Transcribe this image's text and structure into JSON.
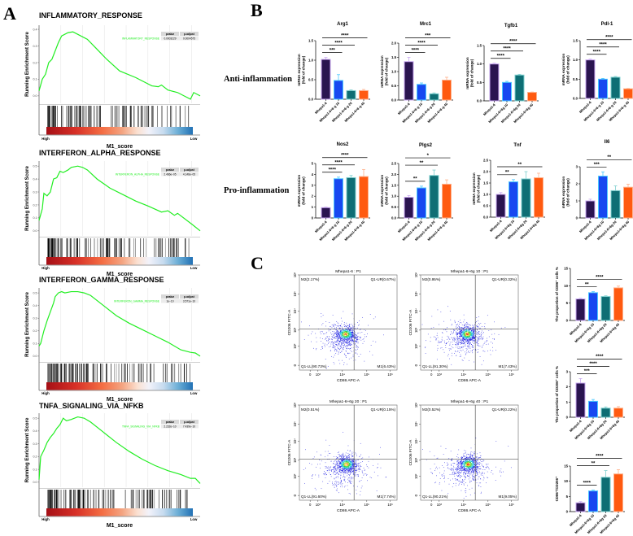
{
  "panel_labels": {
    "a": "A",
    "b": "B",
    "c": "C"
  },
  "row_labels": {
    "anti": "Anti-inflammation",
    "pro": "Pro-inflammation"
  },
  "colors": {
    "curve": "#22ee22",
    "bar_fills": [
      "#2a1450",
      "#1848f0",
      "#0e6e74",
      "#ff5a10"
    ],
    "bar_strokes": [
      "#c9a8f2",
      "#4cc8ff",
      "#7fd0d0",
      "#ffb08a"
    ],
    "flow_line": "#555555"
  },
  "chart_data": [
    {
      "panel": "A",
      "type": "line",
      "title": "INFLAMMATORY_RESPONSE",
      "gene_set_label": "INFLAMMATORY_RESPONSE",
      "table_headers": [
        "pvalue",
        "p.adjust"
      ],
      "pvalue": "0.0003229",
      "p_adjust": "0.0004575",
      "ylabel": "Running Enrichment Score",
      "xlabel": "M1_score",
      "x_ends": [
        "High",
        "Low"
      ],
      "ylim": [
        -0.03,
        0.41
      ],
      "yticks": [
        "0.0",
        "0.1",
        "0.2",
        "0.3",
        "0.4"
      ],
      "x": [
        0,
        0.02,
        0.04,
        0.06,
        0.08,
        0.1,
        0.12,
        0.14,
        0.18,
        0.21,
        0.24,
        0.3,
        0.36,
        0.42,
        0.5,
        0.6,
        0.7,
        0.74,
        0.76,
        0.8,
        0.86,
        0.9,
        0.94,
        0.96,
        1
      ],
      "y": [
        0.03,
        0.1,
        0.13,
        0.2,
        0.22,
        0.27,
        0.32,
        0.36,
        0.38,
        0.385,
        0.37,
        0.34,
        0.28,
        0.22,
        0.15,
        0.11,
        0.06,
        0.055,
        0.065,
        0.035,
        0.02,
        0.0,
        -0.02,
        0.02,
        0.0
      ]
    },
    {
      "panel": "A",
      "type": "line",
      "title": "INTERFERON_ALPHA_RESPONSE",
      "gene_set_label": "INTERFERON_ALPHA_RESPONSE",
      "table_headers": [
        "pvalue",
        "p.adjust"
      ],
      "pvalue": "2.466e−05",
      "p_adjust": "4.146e−05",
      "ylabel": "Running Enrichment Score",
      "xlabel": "M1_score",
      "x_ends": [
        "High",
        "Low"
      ],
      "ylim": [
        -0.02,
        0.52
      ],
      "yticks": [
        "0.0",
        "0.1",
        "0.2",
        "0.3",
        "0.4",
        "0.5"
      ],
      "x": [
        0,
        0.02,
        0.03,
        0.05,
        0.07,
        0.09,
        0.11,
        0.13,
        0.15,
        0.18,
        0.2,
        0.24,
        0.27,
        0.3,
        0.36,
        0.44,
        0.52,
        0.6,
        0.68,
        0.76,
        0.8,
        0.84,
        0.86,
        0.95,
        1
      ],
      "y": [
        0.08,
        0.17,
        0.29,
        0.27,
        0.3,
        0.4,
        0.41,
        0.46,
        0.45,
        0.47,
        0.49,
        0.5,
        0.49,
        0.47,
        0.4,
        0.33,
        0.28,
        0.23,
        0.19,
        0.145,
        0.155,
        0.12,
        0.135,
        0.05,
        0.0
      ]
    },
    {
      "panel": "A",
      "type": "line",
      "title": "INTERFERON_GAMMA_RESPONSE",
      "gene_set_label": "INTERFERON_GAMMA_RESPONSE",
      "table_headers": [
        "pvalue",
        "p.adjust"
      ],
      "pvalue": "1e−10",
      "p_adjust": "3.571e−10",
      "ylabel": "Running Enrichment Score",
      "xlabel": "M1_score",
      "x_ends": [
        "High",
        "Low"
      ],
      "ylim": [
        -0.02,
        0.52
      ],
      "yticks": [
        "0.0",
        "0.1",
        "0.2",
        "0.3",
        "0.4",
        "0.5"
      ],
      "x": [
        0,
        0.01,
        0.03,
        0.05,
        0.07,
        0.09,
        0.1,
        0.12,
        0.14,
        0.16,
        0.2,
        0.24,
        0.28,
        0.32,
        0.4,
        0.48,
        0.56,
        0.64,
        0.72,
        0.8,
        0.88,
        0.94,
        0.97,
        1
      ],
      "y": [
        0.08,
        0.1,
        0.2,
        0.28,
        0.35,
        0.42,
        0.47,
        0.5,
        0.51,
        0.5,
        0.51,
        0.51,
        0.5,
        0.48,
        0.4,
        0.32,
        0.26,
        0.21,
        0.16,
        0.11,
        0.05,
        0.03,
        0.025,
        0.0
      ]
    },
    {
      "panel": "A",
      "type": "line",
      "title": "TNFA_SIGNALING_VIA_NFKB",
      "gene_set_label": "TNFA_SIGNALING_VIA_NFKB",
      "table_headers": [
        "pvalue",
        "p.adjust"
      ],
      "pvalue": "2.232e−10",
      "p_adjust": "7.439e−10",
      "ylabel": "Running Enrichment Score",
      "xlabel": "M1_score",
      "x_ends": [
        "High",
        "Low"
      ],
      "ylim": [
        -0.02,
        0.52
      ],
      "yticks": [
        "0.0",
        "0.1",
        "0.2",
        "0.3",
        "0.4",
        "0.5"
      ],
      "x": [
        0,
        0.01,
        0.03,
        0.05,
        0.07,
        0.09,
        0.11,
        0.13,
        0.15,
        0.17,
        0.2,
        0.24,
        0.28,
        0.32,
        0.4,
        0.48,
        0.56,
        0.64,
        0.72,
        0.8,
        0.88,
        0.94,
        0.97,
        1
      ],
      "y": [
        0.02,
        0.2,
        0.25,
        0.31,
        0.35,
        0.38,
        0.42,
        0.45,
        0.5,
        0.48,
        0.49,
        0.51,
        0.5,
        0.47,
        0.39,
        0.31,
        0.24,
        0.18,
        0.13,
        0.09,
        0.06,
        0.03,
        0.03,
        -0.01
      ]
    },
    {
      "panel": "B",
      "type": "bar",
      "title": "Arg1",
      "ylabel": [
        "mRNA expression",
        "(fold of change)"
      ],
      "categories": [
        "Mhepa1-6",
        "Mhepa1-6+6-g 10",
        "Mhepa1-6+6-g 20",
        "Mhepa1-6+6-g 40"
      ],
      "values": [
        1.02,
        0.48,
        0.22,
        0.22
      ],
      "errors": [
        0.05,
        0.15,
        0.02,
        0.03
      ],
      "ylim": [
        0,
        1.5
      ],
      "yticks": [
        "0.0",
        "0.5",
        "1.0",
        "1.5"
      ],
      "significance": [
        {
          "from": 0,
          "to": 1,
          "label": "***"
        },
        {
          "from": 0,
          "to": 2,
          "label": "****"
        },
        {
          "from": 0,
          "to": 3,
          "label": "****"
        }
      ]
    },
    {
      "panel": "B",
      "type": "bar",
      "title": "Mrc1",
      "ylabel": [
        "mRNA expression",
        "(fold of change)"
      ],
      "categories": [
        "Mhepa1-6",
        "Mhepa1-6+6-g 10",
        "Mhepa1-6+6-g 20",
        "Mhepa1-6+6-g 40"
      ],
      "values": [
        1.35,
        0.55,
        0.22,
        0.7
      ],
      "errors": [
        0.15,
        0.05,
        0.03,
        0.1
      ],
      "ylim": [
        0,
        2.0
      ],
      "yticks": [
        "0.0",
        "0.5",
        "1.0",
        "1.5",
        "2.0"
      ],
      "significance": [
        {
          "from": 0,
          "to": 1,
          "label": "****"
        },
        {
          "from": 0,
          "to": 2,
          "label": "****"
        },
        {
          "from": 0,
          "to": 3,
          "label": "***"
        }
      ]
    },
    {
      "panel": "B",
      "type": "bar",
      "title": "Tgfb1",
      "ylabel": [
        "mRNA expression",
        "(fold of change)"
      ],
      "categories": [
        "Mhepa1-6",
        "Mhepa1-6+6g 10",
        "Mhepa1-6+6g 20",
        "Mhepa1-6+6g 40"
      ],
      "values": [
        1.0,
        0.5,
        0.7,
        0.23
      ],
      "errors": [
        0.02,
        0.03,
        0.02,
        0.01
      ],
      "ylim": [
        0,
        1.5
      ],
      "yticks": [
        "0.0",
        "0.5",
        "1.0",
        "1.5"
      ],
      "significance": [
        {
          "from": 0,
          "to": 1,
          "label": "****"
        },
        {
          "from": 0,
          "to": 2,
          "label": "****"
        },
        {
          "from": 0,
          "to": 3,
          "label": "****"
        }
      ]
    },
    {
      "panel": "B",
      "type": "bar",
      "title": "Pdl-1",
      "ylabel": [
        "mRNA expression",
        "(fold of change)"
      ],
      "categories": [
        "Mhepa1-6",
        "Mhepa1-6+6-g 10",
        "Mhepa1-6+6-g 20",
        "Mhepa1-6+6-g 40"
      ],
      "values": [
        1.0,
        0.5,
        0.55,
        0.25
      ],
      "errors": [
        0.02,
        0.02,
        0.02,
        0.01
      ],
      "ylim": [
        0,
        1.5
      ],
      "yticks": [
        "0.0",
        "0.5",
        "1.0",
        "1.5"
      ],
      "significance": [
        {
          "from": 0,
          "to": 1,
          "label": "****"
        },
        {
          "from": 0,
          "to": 2,
          "label": "****"
        },
        {
          "from": 0,
          "to": 3,
          "label": "****"
        }
      ]
    },
    {
      "panel": "B",
      "type": "bar",
      "title": "Nos2",
      "ylabel": [
        "mRNA expression",
        "(fold of change)"
      ],
      "categories": [
        "Mhepa1-6",
        "Mhepa1-6+6-g 10",
        "Mhepa1-6+6-g 20",
        "Mhepa1-6+6-g 40"
      ],
      "values": [
        0.95,
        3.6,
        3.7,
        3.8
      ],
      "errors": [
        0.05,
        0.15,
        0.2,
        0.65
      ],
      "ylim": [
        0,
        5
      ],
      "yticks": [
        "0",
        "1",
        "2",
        "3",
        "4",
        "5"
      ],
      "significance": [
        {
          "from": 0,
          "to": 1,
          "label": "****"
        },
        {
          "from": 0,
          "to": 2,
          "label": "****"
        },
        {
          "from": 0,
          "to": 3,
          "label": "****"
        }
      ]
    },
    {
      "panel": "B",
      "type": "bar",
      "title": "Plgs2",
      "ylabel": [
        "mRNA expression",
        "(fold of change)"
      ],
      "categories": [
        "Mhepa1-6",
        "Mhepa1-6+6-g 10",
        "Mhepa1-6+6-g 20",
        "Mhepa1-6+6-g 40"
      ],
      "values": [
        0.95,
        1.38,
        1.95,
        1.55
      ],
      "errors": [
        0.08,
        0.08,
        0.25,
        0.2
      ],
      "ylim": [
        0,
        2.5
      ],
      "yticks": [
        "0.0",
        "0.5",
        "1.0",
        "1.5",
        "2.0",
        "2.5"
      ],
      "significance": [
        {
          "from": 0,
          "to": 1,
          "label": "**"
        },
        {
          "from": 0,
          "to": 2,
          "label": "**"
        },
        {
          "from": 0,
          "to": 3,
          "label": "*"
        }
      ]
    },
    {
      "panel": "B",
      "type": "bar",
      "title": "Tnf",
      "ylabel": [
        "mRNA expression",
        "(fold of change)"
      ],
      "categories": [
        "Mhepa1-6",
        "Mhepa1-6+6g 10",
        "Mhepa1-6+6g 20",
        "Mhepa1-6+6g 40"
      ],
      "values": [
        1.0,
        1.55,
        1.68,
        1.73
      ],
      "errors": [
        0.08,
        0.1,
        0.32,
        0.2
      ],
      "ylim": [
        0,
        2.5
      ],
      "yticks": [
        "0.0",
        "0.5",
        "1.0",
        "1.5",
        "2.0",
        "2.5"
      ],
      "significance": [
        {
          "from": 0,
          "to": 1,
          "label": "**"
        },
        {
          "from": 0,
          "to": 3,
          "label": "**"
        }
      ]
    },
    {
      "panel": "B",
      "type": "bar",
      "title": "Il6",
      "ylabel": [
        "mRNA expression",
        "(fold of change)"
      ],
      "categories": [
        "Mhepa1-6",
        "Mhepa1-6+6g 10",
        "Mhepa1-6+6g 20",
        "Mhepa1-6+6g 40"
      ],
      "values": [
        1.0,
        2.45,
        1.6,
        1.8
      ],
      "errors": [
        0.1,
        0.25,
        0.28,
        0.18
      ],
      "ylim": [
        0,
        3
      ],
      "yticks": [
        "0",
        "1",
        "2",
        "3"
      ],
      "significance": [
        {
          "from": 0,
          "to": 1,
          "label": "***"
        },
        {
          "from": 0,
          "to": 3,
          "label": "**"
        }
      ]
    },
    {
      "panel": "C",
      "type": "bar",
      "title": "",
      "ylabel": [
        "The proportion of CD86⁺ cells %"
      ],
      "categories": [
        "Mhepa1-6",
        "Mhepa1-6+6g 10",
        "Mhepa1-6+6g 20",
        "Mhepa1-6+6g 40"
      ],
      "values": [
        6.2,
        8.0,
        6.9,
        9.4
      ],
      "errors": [
        0.2,
        0.3,
        0.2,
        0.5
      ],
      "ylim": [
        0,
        15
      ],
      "yticks": [
        "0",
        "5",
        "10",
        "15"
      ],
      "significance": [
        {
          "from": 0,
          "to": 1,
          "label": "**"
        },
        {
          "from": 0,
          "to": 3,
          "label": "****"
        }
      ]
    },
    {
      "panel": "C",
      "type": "bar",
      "title": "",
      "ylabel": [
        "The proportion of CD206⁺ cells %"
      ],
      "categories": [
        "Mhepa1-6",
        "Mhepa1-6+6g 10",
        "Mhepa1-6+6g 20",
        "Mhepa1-6+6g 40"
      ],
      "values": [
        2.25,
        1.05,
        0.6,
        0.6
      ],
      "errors": [
        0.3,
        0.12,
        0.08,
        0.1
      ],
      "ylim": [
        0,
        3
      ],
      "yticks": [
        "0",
        "1",
        "2",
        "3"
      ],
      "significance": [
        {
          "from": 0,
          "to": 1,
          "label": "***"
        },
        {
          "from": 0,
          "to": 2,
          "label": "****"
        },
        {
          "from": 0,
          "to": 3,
          "label": "****"
        }
      ]
    },
    {
      "panel": "C",
      "type": "bar",
      "title": "",
      "ylabel": [
        "CD86⁺/CD206⁺"
      ],
      "categories": [
        "Mhepa1-6",
        "Mhepa1-6+6g 10",
        "Mhepa1-6+6g 20",
        "Mhepa1-6+6g 40"
      ],
      "values": [
        2.9,
        6.8,
        11.3,
        12.4
      ],
      "errors": [
        0.4,
        0.3,
        2.2,
        1.4
      ],
      "ylim": [
        0,
        15
      ],
      "yticks": [
        "0",
        "5",
        "10",
        "15"
      ],
      "significance": [
        {
          "from": 0,
          "to": 1,
          "label": "****"
        },
        {
          "from": 0,
          "to": 2,
          "label": "**"
        },
        {
          "from": 0,
          "to": 3,
          "label": "****"
        }
      ]
    },
    {
      "panel": "C",
      "type": "scatter",
      "title": "Mhepa1-6 : P1",
      "xlabel": "CD86 APC-A",
      "ylabel": "CD206 FITC-A",
      "xticks": [
        "0",
        "10³",
        "10⁴",
        "10⁵",
        "10⁶"
      ],
      "yticks": [
        "0",
        "10²",
        "10³",
        "10⁴",
        "10⁵",
        "10⁶"
      ],
      "quadrants": {
        "upper_left": "M2(2.17%)",
        "upper_right": "Q1-UR(0.67%)",
        "lower_left": "Q1-LL(90.73%)",
        "lower_right": "M1(6.43%)"
      }
    },
    {
      "panel": "C",
      "type": "scatter",
      "title": "Mhepa1-6+6g 10 : P1",
      "xlabel": "CD86 APC-A",
      "ylabel": "CD206 FITC-A",
      "xticks": [
        "0",
        "10³",
        "10⁴",
        "10⁵",
        "10⁶"
      ],
      "yticks": [
        "0",
        "10²",
        "10³",
        "10⁴",
        "10⁵",
        "10⁶"
      ],
      "quadrants": {
        "upper_left": "M2(0.95%)",
        "upper_right": "Q1-UR(0.32%)",
        "lower_left": "Q1-LL(91.30%)",
        "lower_right": "M1(7.43%)"
      }
    },
    {
      "panel": "C",
      "type": "scatter",
      "title": "Mhepa1-6+6g 20 : P1",
      "xlabel": "CD86 APC-A",
      "ylabel": "CD206 FITC-A",
      "xticks": [
        "0",
        "10³",
        "10⁴",
        "10⁵",
        "10⁶"
      ],
      "yticks": [
        "0",
        "10²",
        "10³",
        "10⁴",
        "10⁵",
        "10⁶"
      ],
      "quadrants": {
        "upper_left": "M2(0.51%)",
        "upper_right": "Q1-UR(0.15%)",
        "lower_left": "Q1-LL(91.60%)",
        "lower_right": "M1(7.74%)"
      }
    },
    {
      "panel": "C",
      "type": "scatter",
      "title": "Mhepa1-6+6g 40 : P1",
      "xlabel": "CD86 APC-A",
      "ylabel": "CD206 FITC-A",
      "xticks": [
        "0",
        "10³",
        "10⁴",
        "10⁵",
        "10⁶"
      ],
      "yticks": [
        "0",
        "10²",
        "10³",
        "10⁴",
        "10⁵",
        "10⁶"
      ],
      "quadrants": {
        "upper_left": "M2(0.52%)",
        "upper_right": "Q1-UR(0.22%)",
        "lower_left": "Q1-LL(90.21%)",
        "lower_right": "M1(9.05%)"
      }
    }
  ]
}
